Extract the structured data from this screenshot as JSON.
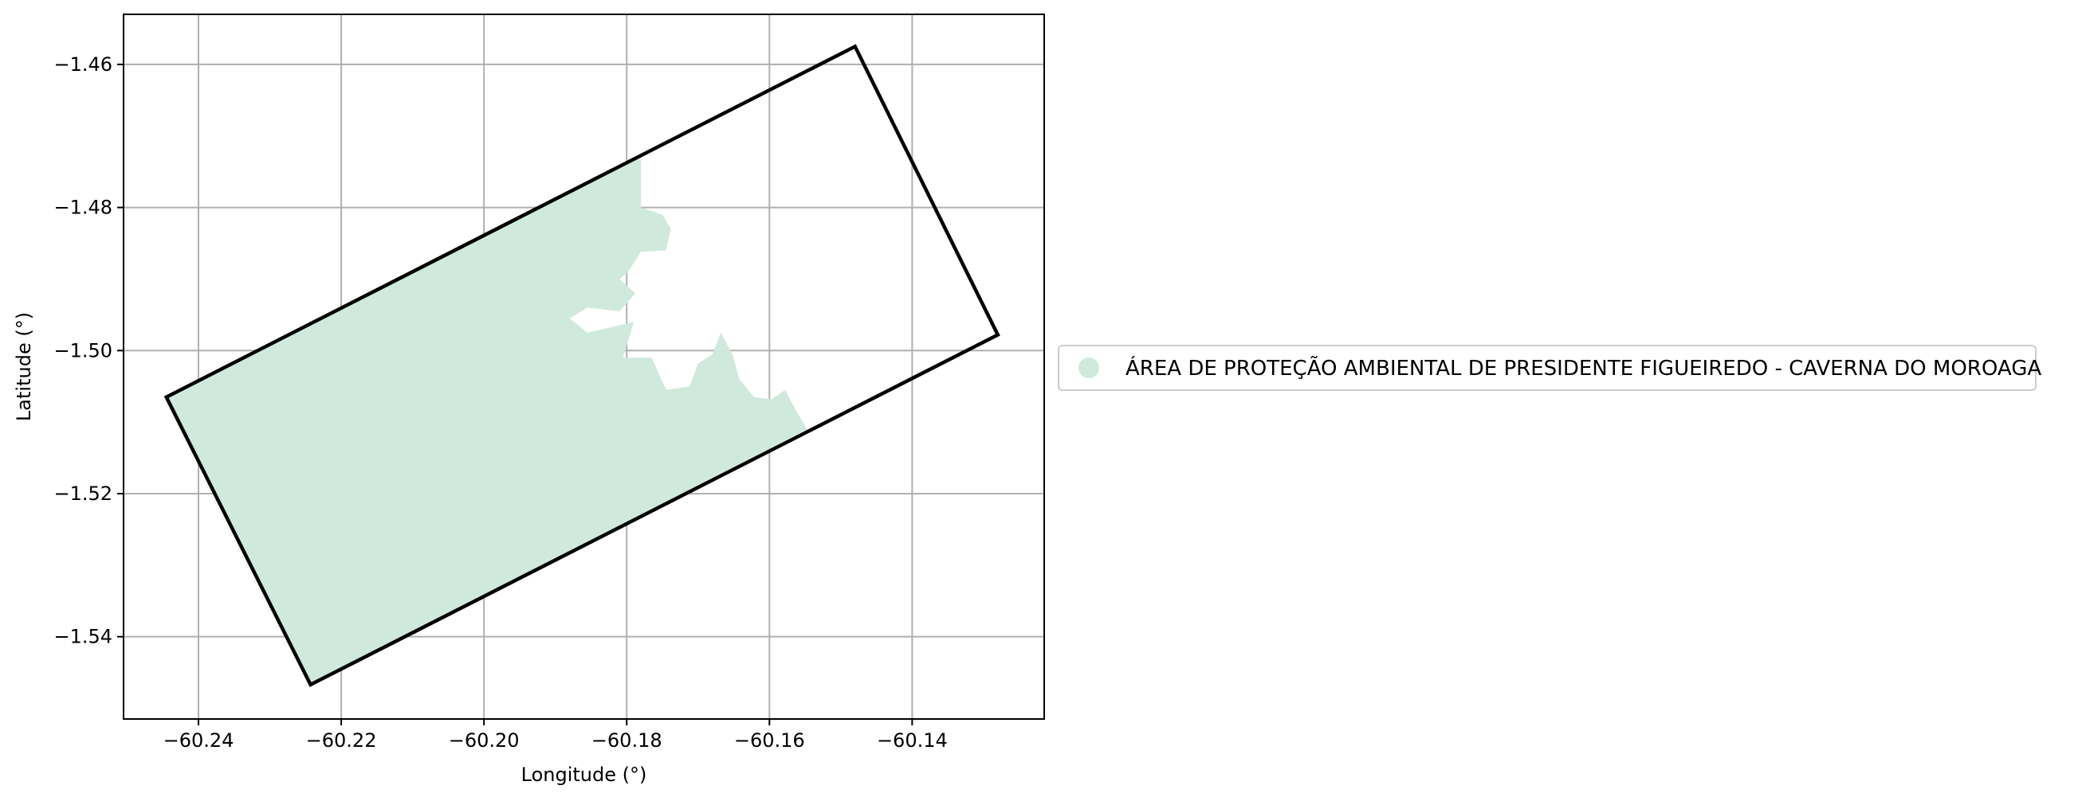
{
  "chart_data": {
    "type": "map",
    "xlabel": "Longitude (°)",
    "ylabel": "Latitude (°)",
    "xlim": [
      -60.2505,
      -60.1215
    ],
    "ylim": [
      -1.5515,
      -1.453
    ],
    "xticks": [
      {
        "value": -60.24,
        "label": "−60.24"
      },
      {
        "value": -60.22,
        "label": "−60.22"
      },
      {
        "value": -60.2,
        "label": "−60.20"
      },
      {
        "value": -60.18,
        "label": "−60.18"
      },
      {
        "value": -60.16,
        "label": "−60.16"
      },
      {
        "value": -60.14,
        "label": "−60.14"
      }
    ],
    "yticks": [
      {
        "value": -1.46,
        "label": "−1.46"
      },
      {
        "value": -1.48,
        "label": "−1.48"
      },
      {
        "value": -1.5,
        "label": "−1.50"
      },
      {
        "value": -1.52,
        "label": "−1.52"
      },
      {
        "value": -1.54,
        "label": "−1.54"
      }
    ],
    "grid": true,
    "legend_position": "right",
    "legend_entries": [
      {
        "label": "ÁREA DE PROTEÇÃO AMBIENTAL DE PRESIDENTE FIGUEIREDO - CAVERNA DO MOROAGA",
        "color": "#cfeadc"
      }
    ],
    "boundary": {
      "color": "#000000",
      "points": [
        [
          -60.2445,
          -1.5065
        ],
        [
          -60.148,
          -1.4575
        ],
        [
          -60.128,
          -1.4978
        ],
        [
          -60.2243,
          -1.5467
        ]
      ]
    },
    "protected_area": {
      "color": "#cfeadc",
      "points": [
        [
          -60.2445,
          -1.5065
        ],
        [
          -60.178,
          -1.4728
        ],
        [
          -60.178,
          -1.48
        ],
        [
          -60.175,
          -1.481
        ],
        [
          -60.1738,
          -1.483
        ],
        [
          -60.1745,
          -1.486
        ],
        [
          -60.178,
          -1.4862
        ],
        [
          -60.1798,
          -1.489
        ],
        [
          -60.181,
          -1.49
        ],
        [
          -60.1788,
          -1.492
        ],
        [
          -60.181,
          -1.4945
        ],
        [
          -60.1855,
          -1.494
        ],
        [
          -60.188,
          -1.4955
        ],
        [
          -60.1855,
          -1.4975
        ],
        [
          -60.179,
          -1.496
        ],
        [
          -60.1805,
          -1.501
        ],
        [
          -60.1765,
          -1.501
        ],
        [
          -60.1745,
          -1.5055
        ],
        [
          -60.1712,
          -1.505
        ],
        [
          -60.17,
          -1.5018
        ],
        [
          -60.168,
          -1.5005
        ],
        [
          -60.1668,
          -1.4975
        ],
        [
          -60.1652,
          -1.5005
        ],
        [
          -60.1642,
          -1.504
        ],
        [
          -60.1622,
          -1.5065
        ],
        [
          -60.1597,
          -1.5068
        ],
        [
          -60.1578,
          -1.5055
        ],
        [
          -60.1562,
          -1.5085
        ],
        [
          -60.1547,
          -1.511
        ],
        [
          -60.2243,
          -1.5467
        ]
      ]
    }
  }
}
